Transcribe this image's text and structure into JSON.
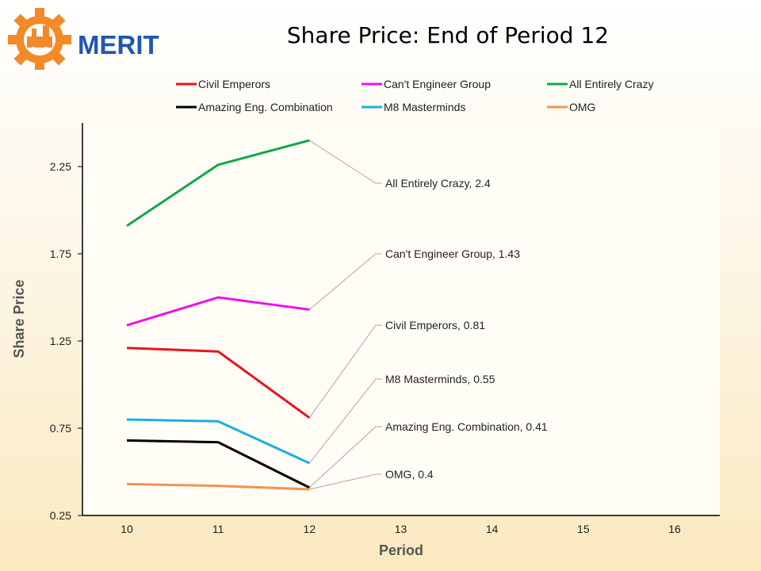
{
  "logo": {
    "text": "MERIT"
  },
  "chart_data": {
    "type": "line",
    "title": "Share Price: End of Period 12",
    "xlabel": "Period",
    "ylabel": "Share Price",
    "x": [
      10,
      11,
      12
    ],
    "xticks": [
      "10",
      "11",
      "12",
      "13",
      "14",
      "15",
      "16"
    ],
    "xlim": [
      10,
      16
    ],
    "yticks": [
      "0.25",
      "0.75",
      "1.25",
      "1.75",
      "2.25"
    ],
    "ylim": [
      0.25,
      2.5
    ],
    "legend_position": "top",
    "series": [
      {
        "name": "Civil Emperors",
        "color": "#e8141c",
        "values": [
          1.21,
          1.19,
          0.81
        ],
        "annotation": "Civil Emperors, 0.81"
      },
      {
        "name": "Can't Engineer Group",
        "color": "#ee10ee",
        "values": [
          1.34,
          1.5,
          1.43
        ],
        "annotation": "Can't Engineer Group, 1.43"
      },
      {
        "name": "All Entirely Crazy",
        "color": "#12a84a",
        "values": [
          1.91,
          2.26,
          2.4
        ],
        "annotation": "All Entirely Crazy, 2.4"
      },
      {
        "name": "Amazing Eng. Combination",
        "color": "#000000",
        "values": [
          0.68,
          0.67,
          0.41
        ],
        "annotation": "Amazing Eng. Combination, 0.41"
      },
      {
        "name": "M8 Masterminds",
        "color": "#1aaee6",
        "values": [
          0.8,
          0.79,
          0.55
        ],
        "annotation": "M8 Masterminds, 0.55"
      },
      {
        "name": "OMG",
        "color": "#f4934b",
        "values": [
          0.43,
          0.42,
          0.4
        ],
        "annotation": "OMG, 0.4"
      }
    ]
  }
}
